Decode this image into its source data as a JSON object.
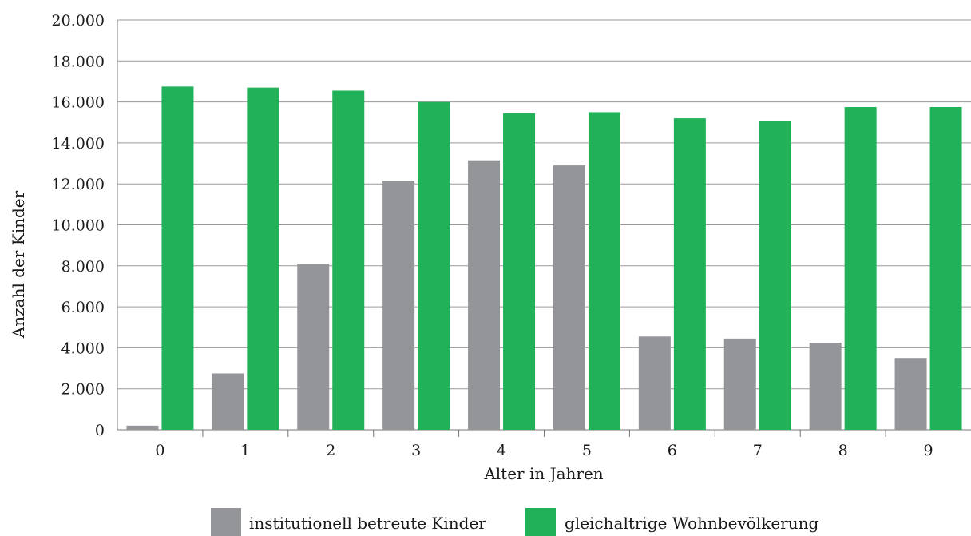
{
  "chart_data": {
    "type": "bar",
    "xlabel": "Alter in Jahren",
    "ylabel": "Anzahl der Kinder",
    "categories": [
      "0",
      "1",
      "2",
      "3",
      "4",
      "5",
      "6",
      "7",
      "8",
      "9"
    ],
    "ylim": [
      0,
      20000
    ],
    "yticks": [
      0,
      2000,
      4000,
      6000,
      8000,
      10000,
      12000,
      14000,
      16000,
      18000,
      20000
    ],
    "ytick_labels": [
      "0",
      "2.000",
      "4.000",
      "6.000",
      "8.000",
      "10.000",
      "12.000",
      "14.000",
      "16.000",
      "18.000",
      "20.000"
    ],
    "grid": true,
    "legend_position": "bottom",
    "series": [
      {
        "name": "institutionell betreute Kinder",
        "color": "#939598",
        "values": [
          200,
          2750,
          8100,
          12150,
          13150,
          12900,
          4550,
          4450,
          4250,
          3500
        ]
      },
      {
        "name": "gleichaltrige Wohnbevölkerung",
        "color": "#21b159",
        "values": [
          16750,
          16700,
          16550,
          16000,
          15450,
          15500,
          15200,
          15050,
          15750,
          15750
        ]
      }
    ]
  }
}
